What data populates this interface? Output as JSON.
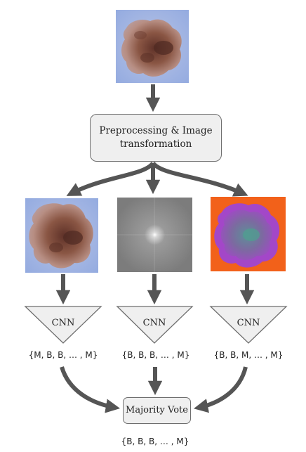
{
  "steps": {
    "preprocess_label": "Preprocessing & Image transformation",
    "classifier_label": "CNN",
    "vote_label": "Majority Vote"
  },
  "images": [
    {
      "name": "input-lesion-image",
      "kind": "dermoscopic lesion photo"
    },
    {
      "name": "lesion-image-original",
      "kind": "dermoscopic lesion photo"
    },
    {
      "name": "lesion-image-fourier",
      "kind": "Fourier spectrum"
    },
    {
      "name": "lesion-image-color-transformed",
      "kind": "false-color lesion"
    }
  ],
  "branches": [
    {
      "predictions": "{M, B, B, … , M}"
    },
    {
      "predictions": "{B, B, B, … , M}"
    },
    {
      "predictions": "{B, B, M, … , M}"
    }
  ],
  "final_prediction": "{B, B, B, … , M}",
  "colors": {
    "arrow": "#555555",
    "box_fill": "#efefef",
    "box_border": "#6e6e6e",
    "skin_background": "#a9bde3",
    "lesion": "#7d4a3c",
    "fourier_background": "#858585",
    "false_color_background": "#f2611a",
    "false_color_lesion": "#9b3fc0"
  }
}
